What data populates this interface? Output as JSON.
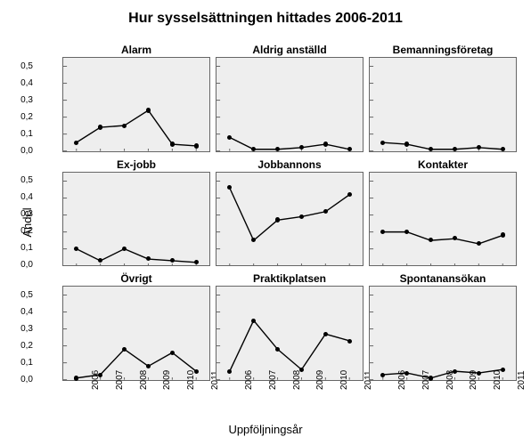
{
  "title": "Hur sysselsättningen hittades 2006-2011",
  "yaxis_label": "Andel",
  "xaxis_label": "Uppföljningsår",
  "years": [
    "2006",
    "2007",
    "2008",
    "2009",
    "2010",
    "2011"
  ],
  "ylim": [
    0,
    0.55
  ],
  "yticks": [
    0.0,
    0.1,
    0.2,
    0.3,
    0.4,
    0.5
  ],
  "ytick_labels": [
    "0,0",
    "0,1",
    "0,2",
    "0,3",
    "0,4",
    "0,5"
  ],
  "background_color": "#ffffff",
  "plot_bg": "#eeeeee",
  "line_color": "#000000",
  "marker_color": "#000000",
  "marker_radius": 2.6,
  "line_width": 1.4,
  "title_fontsize": 16,
  "panel_title_fontsize": 12,
  "axis_label_fontsize": 13,
  "tick_fontsize": 10,
  "panels": [
    {
      "title": "Alarm",
      "values": [
        0.05,
        0.14,
        0.15,
        0.24,
        0.04,
        0.03
      ]
    },
    {
      "title": "Aldrig anställd",
      "values": [
        0.08,
        0.01,
        0.01,
        0.02,
        0.04,
        0.01
      ]
    },
    {
      "title": "Bemanningsföretag",
      "values": [
        0.05,
        0.04,
        0.01,
        0.01,
        0.02,
        0.01
      ]
    },
    {
      "title": "Ex-jobb",
      "values": [
        0.1,
        0.03,
        0.1,
        0.04,
        0.03,
        0.02
      ]
    },
    {
      "title": "Jobbannons",
      "values": [
        0.46,
        0.15,
        0.27,
        0.29,
        0.32,
        0.42
      ]
    },
    {
      "title": "Kontakter",
      "values": [
        0.2,
        0.2,
        0.15,
        0.16,
        0.13,
        0.18
      ]
    },
    {
      "title": "Övrigt",
      "values": [
        0.01,
        0.03,
        0.18,
        0.08,
        0.16,
        0.05
      ]
    },
    {
      "title": "Praktikplatsen",
      "values": [
        0.05,
        0.35,
        0.18,
        0.06,
        0.27,
        0.23
      ]
    },
    {
      "title": "Spontanansökan",
      "values": [
        0.03,
        0.04,
        0.01,
        0.05,
        0.04,
        0.06
      ]
    }
  ]
}
